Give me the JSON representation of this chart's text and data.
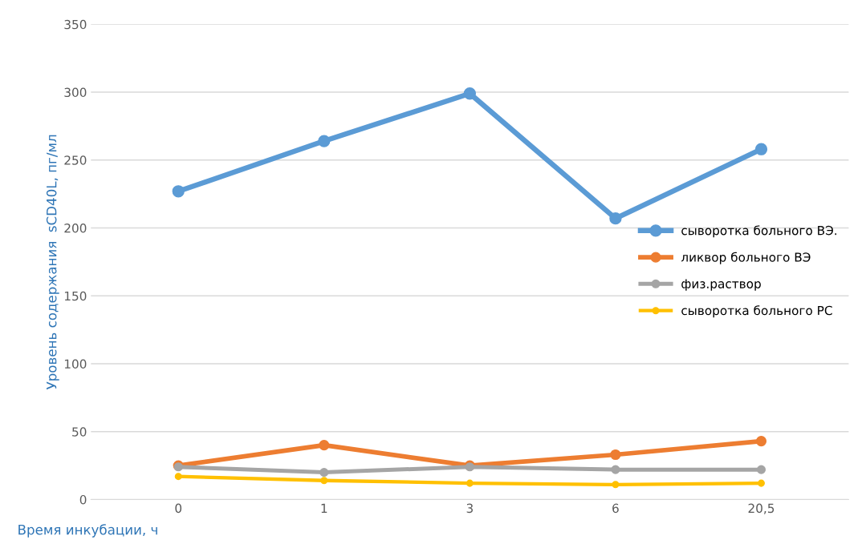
{
  "chart_data": {
    "type": "line",
    "xlabel": "Время инкубации, ч",
    "ylabel": "Уровень содержания  sCD40L, пг/мл",
    "categories": [
      "0",
      "1",
      "3",
      "6",
      "20,5"
    ],
    "series": [
      {
        "name": "сыворотка больного ВЭ.",
        "color": "#5b9bd5",
        "values": [
          227,
          264,
          299,
          207,
          258
        ]
      },
      {
        "name": "ликвор больного ВЭ",
        "color": "#ed7d31",
        "values": [
          25,
          40,
          25,
          33,
          43
        ]
      },
      {
        "name": "физ.раствор",
        "color": "#a5a5a5",
        "values": [
          24,
          20,
          24,
          22,
          22
        ]
      },
      {
        "name": "сыворотка больного РС",
        "color": "#ffc000",
        "values": [
          17,
          14,
          12,
          11,
          12
        ]
      }
    ],
    "ylim": [
      0,
      350
    ],
    "yticks": [
      0,
      50,
      100,
      150,
      200,
      250,
      300,
      350
    ],
    "grid": "y",
    "legend": "right",
    "marker": "circle",
    "line_style": "solid"
  }
}
